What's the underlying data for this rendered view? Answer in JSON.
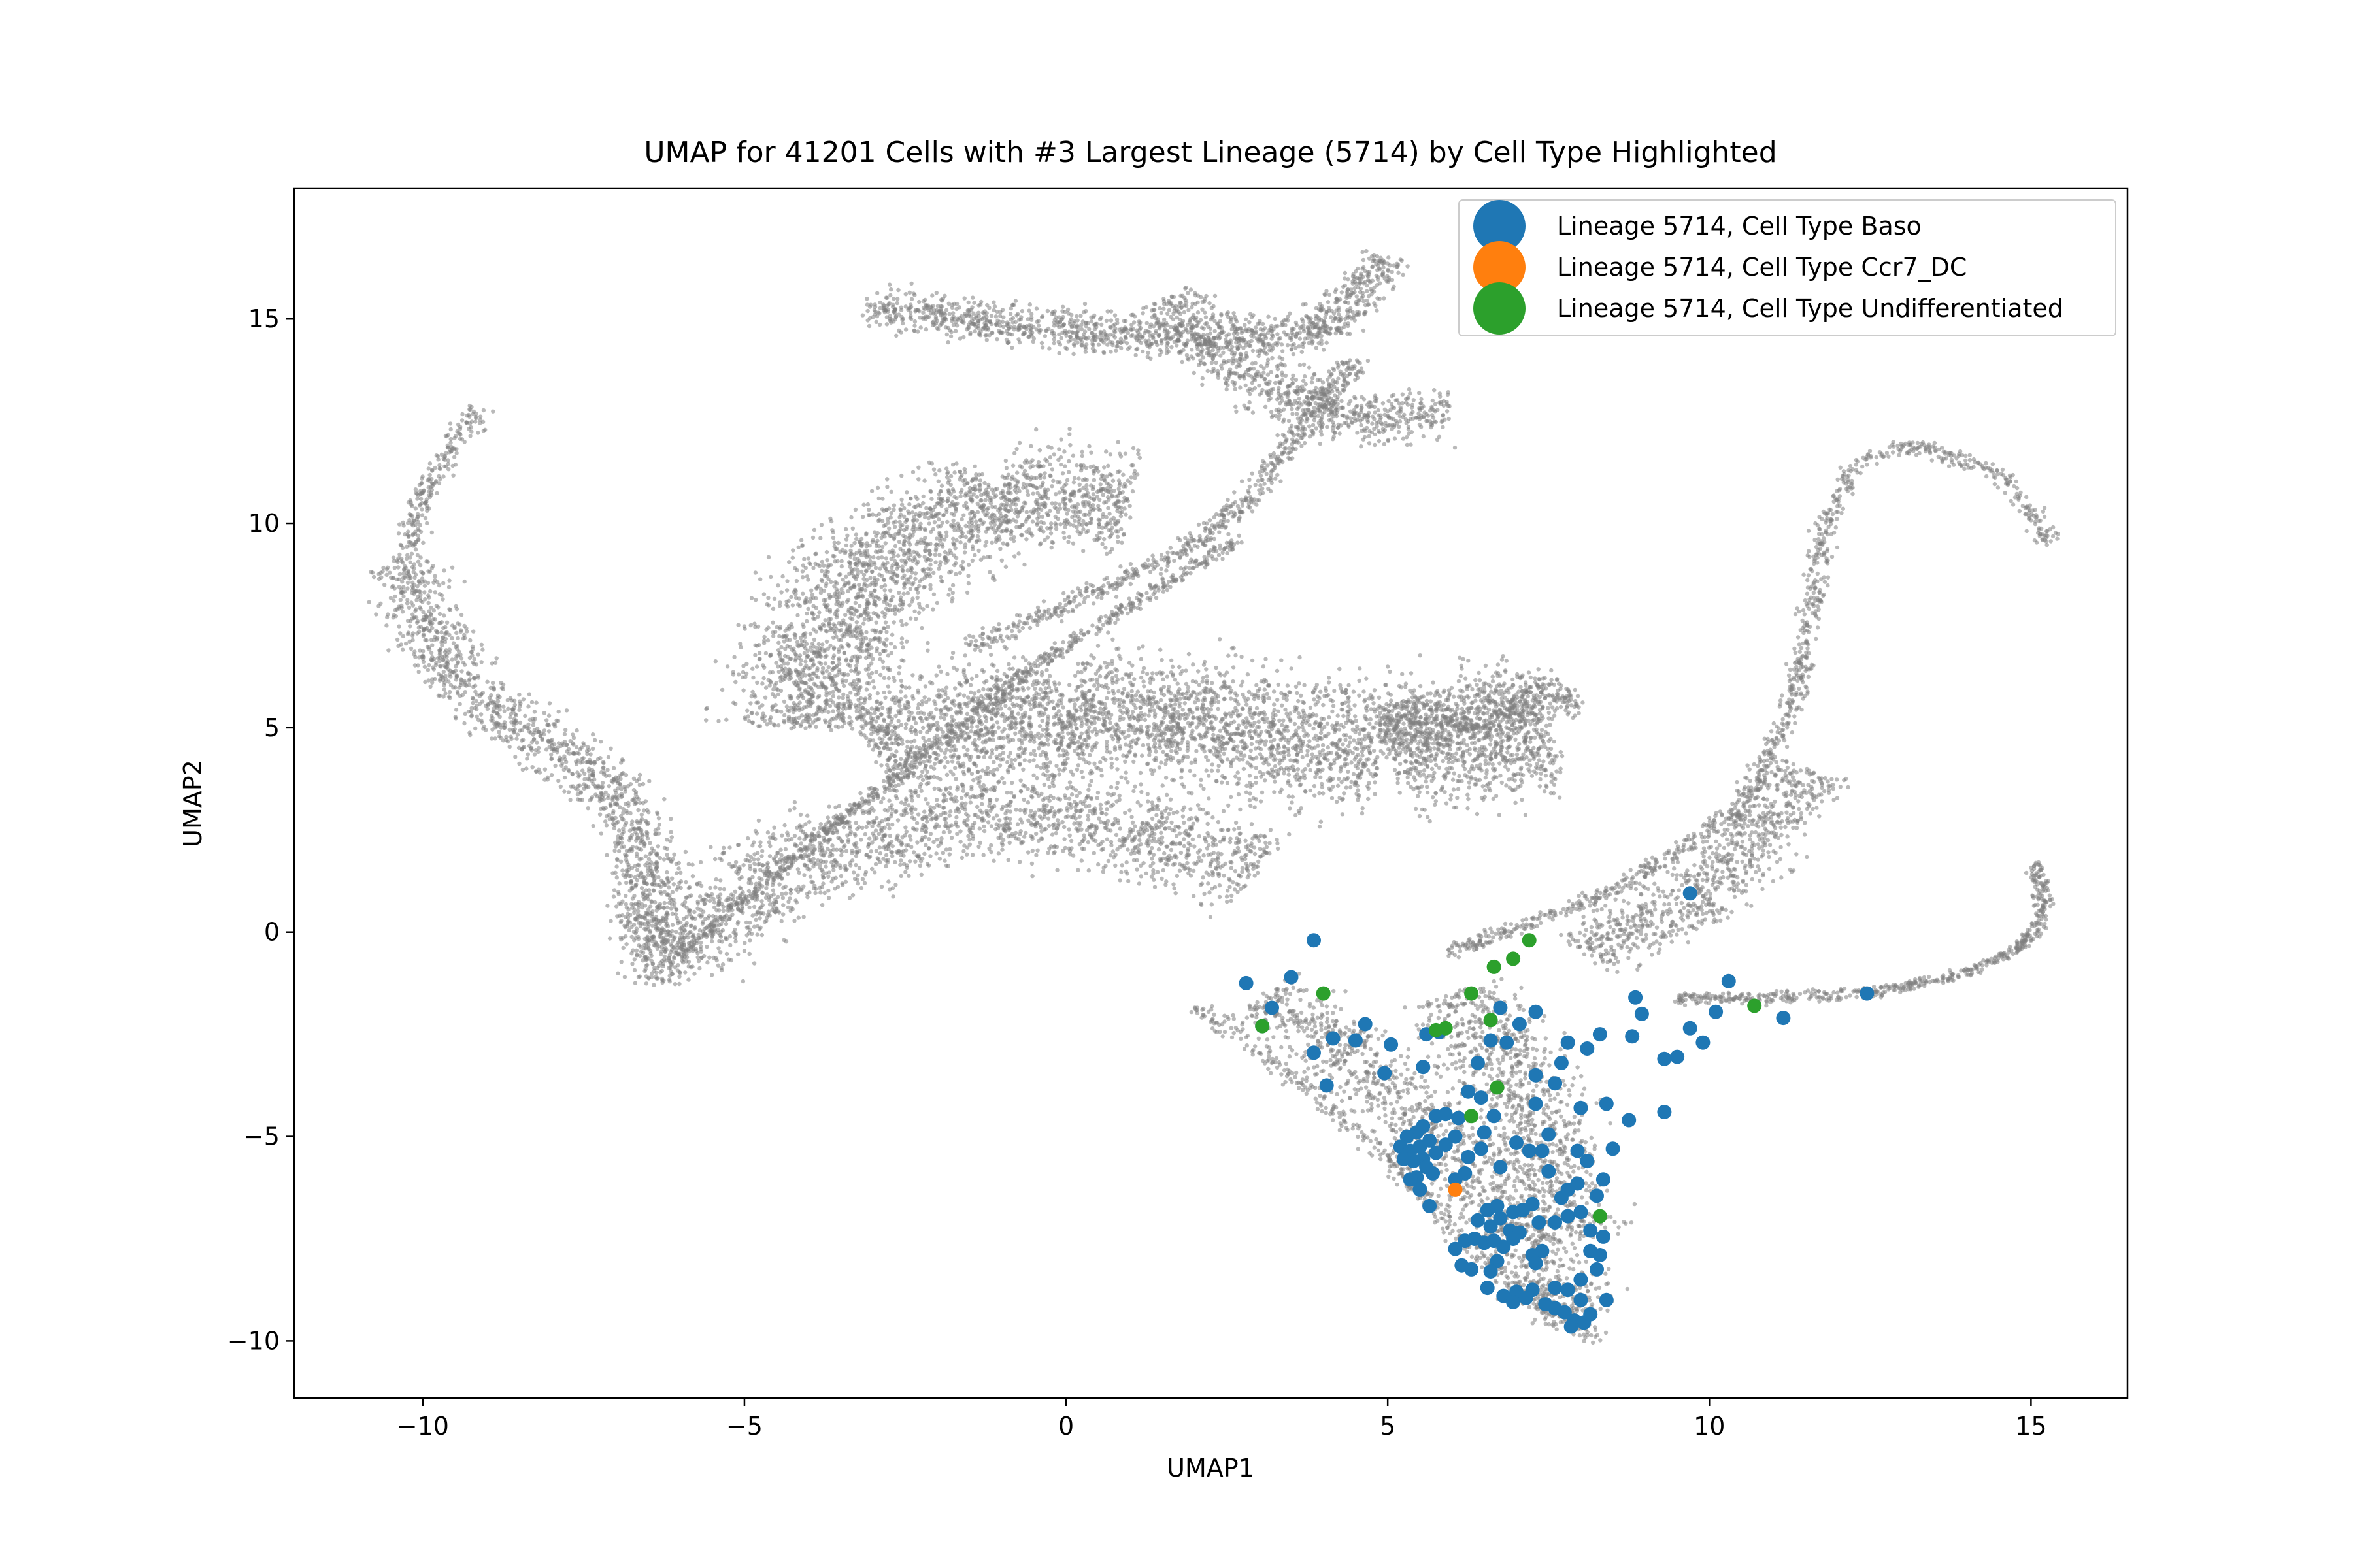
{
  "chart_data": {
    "type": "scatter",
    "title": "UMAP for 41201 Cells with #3 Largest Lineage (5714) by Cell Type Highlighted",
    "xlabel": "UMAP1",
    "ylabel": "UMAP2",
    "xlim": [
      -12.0,
      16.5
    ],
    "ylim": [
      -11.4,
      18.2
    ],
    "xticks": [
      -10,
      -5,
      0,
      5,
      10,
      15
    ],
    "xtick_labels": [
      "−10",
      "−5",
      "0",
      "5",
      "10",
      "15"
    ],
    "yticks": [
      -10,
      -5,
      0,
      5,
      10,
      15
    ],
    "ytick_labels": [
      "−10",
      "−5",
      "0",
      "5",
      "10",
      "15"
    ],
    "legend_position": "top-right",
    "background": {
      "name": "All cells",
      "color": "#808080",
      "regions": [
        {
          "name": "left-arc",
          "path": [
            [
              -10.3,
              9.0
            ],
            [
              -10.0,
              10.6
            ],
            [
              -9.5,
              12.0
            ],
            [
              -9.1,
              12.8
            ]
          ],
          "width": 0.6,
          "density": 500
        },
        {
          "name": "left-arm",
          "path": [
            [
              -10.3,
              9.0
            ],
            [
              -9.9,
              7.3
            ],
            [
              -9.2,
              5.8
            ],
            [
              -8.3,
              4.8
            ],
            [
              -7.2,
              3.8
            ],
            [
              -6.5,
              2.0
            ],
            [
              -6.5,
              0.0
            ],
            [
              -6.3,
              -1.3
            ]
          ],
          "width": 1.7,
          "density": 3200
        },
        {
          "name": "left-basin",
          "path": [
            [
              -6.2,
              -0.5
            ],
            [
              -5.0,
              1.0
            ],
            [
              -3.0,
              2.5
            ],
            [
              -1.0,
              3.0
            ],
            [
              1.0,
              2.5
            ],
            [
              3.0,
              1.5
            ]
          ],
          "width": 3.2,
          "density": 4200
        },
        {
          "name": "upper-lobe",
          "path": [
            [
              -4.0,
              5.0
            ],
            [
              -3.8,
              7.5
            ],
            [
              -2.5,
              9.5
            ],
            [
              -1.0,
              10.8
            ],
            [
              1.0,
              10.5
            ]
          ],
          "width": 3.6,
          "density": 5200
        },
        {
          "name": "central-mass",
          "path": [
            [
              -3.0,
              4.5
            ],
            [
              0.0,
              5.5
            ],
            [
              2.5,
              5.0
            ],
            [
              5.0,
              4.5
            ],
            [
              7.5,
              5.0
            ]
          ],
          "width": 4.5,
          "density": 8200
        },
        {
          "name": "right-lobe",
          "path": [
            [
              5.0,
              5.0
            ],
            [
              7.0,
              5.5
            ],
            [
              7.8,
              6.0
            ]
          ],
          "width": 2.0,
          "density": 1200
        },
        {
          "name": "top-fan",
          "path": [
            [
              -3.1,
              15.3
            ],
            [
              -0.5,
              14.8
            ],
            [
              2.0,
              14.5
            ],
            [
              4.0,
              14.7
            ],
            [
              5.0,
              16.5
            ]
          ],
          "width": 1.4,
          "density": 2800
        },
        {
          "name": "top-fan-inner",
          "path": [
            [
              1.5,
              15.5
            ],
            [
              3.0,
              13.5
            ],
            [
              4.5,
              12.5
            ],
            [
              6.0,
              12.7
            ]
          ],
          "width": 2.0,
          "density": 1800
        },
        {
          "name": "top-stalk",
          "path": [
            [
              4.5,
              14.0
            ],
            [
              3.5,
              12.0
            ],
            [
              2.8,
              10.5
            ],
            [
              2.0,
              9.5
            ],
            [
              0.0,
              8.0
            ],
            [
              -1.5,
              7.0
            ]
          ],
          "width": 0.7,
          "density": 1400
        },
        {
          "name": "diagonal-ridge",
          "path": [
            [
              -6.2,
              -0.8
            ],
            [
              -4.5,
              1.5
            ],
            [
              -2.5,
              4.0
            ],
            [
              -0.5,
              6.5
            ],
            [
              1.5,
              8.5
            ],
            [
              2.7,
              9.6
            ]
          ],
          "width": 0.45,
          "density": 1600
        },
        {
          "name": "right-stem",
          "path": [
            [
              6.0,
              -0.5
            ],
            [
              8.5,
              1.0
            ],
            [
              10.5,
              3.0
            ],
            [
              11.3,
              5.5
            ],
            [
              11.6,
              8.0
            ],
            [
              11.8,
              10.0
            ],
            [
              12.3,
              11.5
            ],
            [
              13.2,
              11.9
            ],
            [
              14.4,
              11.3
            ],
            [
              15.0,
              10.3
            ],
            [
              15.3,
              9.5
            ]
          ],
          "width": 0.5,
          "density": 2200
        },
        {
          "name": "right-fan",
          "path": [
            [
              8.0,
              -0.5
            ],
            [
              10.0,
              1.0
            ],
            [
              11.5,
              4.0
            ]
          ],
          "width": 2.2,
          "density": 1800
        },
        {
          "name": "right-branch",
          "path": [
            [
              9.5,
              -1.6
            ],
            [
              11.0,
              -1.6
            ],
            [
              12.5,
              -1.5
            ],
            [
              14.0,
              -1.0
            ],
            [
              14.9,
              -0.3
            ],
            [
              15.2,
              0.5
            ],
            [
              15.1,
              1.7
            ]
          ],
          "width": 0.35,
          "density": 1200
        },
        {
          "name": "lower-wedge",
          "path": [
            [
              3.0,
              -1.5
            ],
            [
              4.5,
              -3.0
            ],
            [
              5.8,
              -5.0
            ],
            [
              7.0,
              -7.2
            ],
            [
              8.0,
              -9.5
            ]
          ],
          "width": 2.2,
          "density": 2600
        },
        {
          "name": "lower-triangle",
          "path": [
            [
              6.0,
              -1.5
            ],
            [
              7.0,
              -3.5
            ],
            [
              7.5,
              -5.5
            ],
            [
              7.8,
              -7.5
            ]
          ],
          "width": 2.6,
          "density": 2000
        },
        {
          "name": "lower-edge",
          "path": [
            [
              2.0,
              -1.8
            ],
            [
              3.5,
              -3.5
            ],
            [
              5.0,
              -5.5
            ],
            [
              6.5,
              -8.0
            ],
            [
              8.3,
              -10.0
            ]
          ],
          "width": 0.5,
          "density": 900
        }
      ]
    },
    "series": [
      {
        "name": "Lineage 5714, Cell Type Baso",
        "color": "#1f77b4",
        "points": [
          [
            9.7,
            0.95
          ],
          [
            3.85,
            -0.2
          ],
          [
            3.5,
            -1.1
          ],
          [
            2.8,
            -1.25
          ],
          [
            3.2,
            -1.85
          ],
          [
            3.05,
            -2.3
          ],
          [
            12.45,
            -1.5
          ],
          [
            11.15,
            -2.1
          ],
          [
            10.3,
            -1.2
          ],
          [
            10.1,
            -1.95
          ],
          [
            8.85,
            -1.6
          ],
          [
            8.95,
            -2.0
          ],
          [
            8.8,
            -2.55
          ],
          [
            8.3,
            -2.5
          ],
          [
            8.1,
            -2.85
          ],
          [
            7.8,
            -2.7
          ],
          [
            7.7,
            -3.2
          ],
          [
            7.3,
            -1.95
          ],
          [
            7.05,
            -2.25
          ],
          [
            6.75,
            -1.85
          ],
          [
            6.85,
            -2.7
          ],
          [
            6.6,
            -2.65
          ],
          [
            5.8,
            -2.45
          ],
          [
            5.6,
            -2.5
          ],
          [
            4.65,
            -2.25
          ],
          [
            4.5,
            -2.65
          ],
          [
            5.05,
            -2.75
          ],
          [
            4.15,
            -2.6
          ],
          [
            3.85,
            -2.95
          ],
          [
            4.05,
            -3.75
          ],
          [
            4.95,
            -3.45
          ],
          [
            5.55,
            -3.3
          ],
          [
            6.4,
            -3.2
          ],
          [
            7.3,
            -3.5
          ],
          [
            7.6,
            -3.7
          ],
          [
            9.9,
            -2.7
          ],
          [
            9.7,
            -2.35
          ],
          [
            9.5,
            -3.05
          ],
          [
            9.3,
            -3.1
          ],
          [
            9.3,
            -4.4
          ],
          [
            8.75,
            -4.6
          ],
          [
            8.5,
            -5.3
          ],
          [
            8.4,
            -4.2
          ],
          [
            8.0,
            -4.3
          ],
          [
            7.5,
            -4.95
          ],
          [
            7.3,
            -4.2
          ],
          [
            6.65,
            -4.5
          ],
          [
            6.5,
            -4.9
          ],
          [
            6.45,
            -4.05
          ],
          [
            6.25,
            -3.9
          ],
          [
            6.1,
            -4.55
          ],
          [
            5.9,
            -4.45
          ],
          [
            5.75,
            -4.5
          ],
          [
            5.55,
            -4.75
          ],
          [
            5.45,
            -4.9
          ],
          [
            5.3,
            -5.0
          ],
          [
            5.2,
            -5.25
          ],
          [
            5.35,
            -5.35
          ],
          [
            5.5,
            -5.25
          ],
          [
            5.65,
            -5.1
          ],
          [
            5.55,
            -5.55
          ],
          [
            5.4,
            -5.6
          ],
          [
            5.25,
            -5.55
          ],
          [
            5.6,
            -5.75
          ],
          [
            5.75,
            -5.4
          ],
          [
            5.9,
            -5.2
          ],
          [
            6.05,
            -5.0
          ],
          [
            5.7,
            -5.9
          ],
          [
            5.45,
            -6.0
          ],
          [
            5.35,
            -6.05
          ],
          [
            5.5,
            -6.3
          ],
          [
            5.65,
            -6.7
          ],
          [
            6.25,
            -5.5
          ],
          [
            6.2,
            -5.9
          ],
          [
            6.05,
            -6.05
          ],
          [
            6.45,
            -5.3
          ],
          [
            6.75,
            -5.75
          ],
          [
            7.0,
            -5.15
          ],
          [
            7.2,
            -5.35
          ],
          [
            7.4,
            -5.35
          ],
          [
            7.5,
            -5.85
          ],
          [
            7.95,
            -5.35
          ],
          [
            8.1,
            -5.6
          ],
          [
            7.95,
            -6.15
          ],
          [
            7.8,
            -6.3
          ],
          [
            7.7,
            -6.5
          ],
          [
            8.35,
            -6.05
          ],
          [
            8.25,
            -6.45
          ],
          [
            7.25,
            -6.65
          ],
          [
            7.1,
            -6.8
          ],
          [
            6.95,
            -6.85
          ],
          [
            6.7,
            -6.7
          ],
          [
            6.55,
            -6.8
          ],
          [
            6.4,
            -7.05
          ],
          [
            6.6,
            -7.2
          ],
          [
            6.75,
            -7.0
          ],
          [
            6.9,
            -7.3
          ],
          [
            7.05,
            -7.35
          ],
          [
            7.35,
            -7.1
          ],
          [
            7.6,
            -7.1
          ],
          [
            7.8,
            -6.95
          ],
          [
            8.0,
            -6.85
          ],
          [
            8.15,
            -7.3
          ],
          [
            8.35,
            -7.45
          ],
          [
            8.15,
            -7.8
          ],
          [
            8.3,
            -7.9
          ],
          [
            6.2,
            -7.55
          ],
          [
            6.35,
            -7.5
          ],
          [
            6.5,
            -7.6
          ],
          [
            6.65,
            -7.55
          ],
          [
            6.8,
            -7.7
          ],
          [
            6.95,
            -7.5
          ],
          [
            7.25,
            -7.9
          ],
          [
            7.4,
            -7.8
          ],
          [
            6.7,
            -8.05
          ],
          [
            6.6,
            -8.3
          ],
          [
            6.3,
            -8.25
          ],
          [
            6.05,
            -7.75
          ],
          [
            7.3,
            -8.1
          ],
          [
            7.6,
            -8.7
          ],
          [
            7.8,
            -8.75
          ],
          [
            8.0,
            -8.5
          ],
          [
            8.25,
            -8.25
          ],
          [
            8.4,
            -9.0
          ],
          [
            8.0,
            -9.0
          ],
          [
            7.6,
            -9.2
          ],
          [
            7.9,
            -9.5
          ],
          [
            8.05,
            -9.55
          ],
          [
            8.15,
            -9.35
          ],
          [
            6.8,
            -8.9
          ],
          [
            7.0,
            -8.8
          ],
          [
            7.25,
            -8.75
          ],
          [
            7.15,
            -8.95
          ],
          [
            7.45,
            -9.1
          ],
          [
            6.95,
            -9.05
          ],
          [
            7.75,
            -9.3
          ],
          [
            7.85,
            -9.65
          ],
          [
            6.55,
            -8.7
          ],
          [
            6.15,
            -8.15
          ]
        ]
      },
      {
        "name": "Lineage 5714, Cell Type Ccr7_DC",
        "color": "#ff7f0e",
        "points": [
          [
            6.05,
            -6.3
          ]
        ]
      },
      {
        "name": "Lineage 5714, Cell Type Undifferentiated",
        "color": "#2ca02c",
        "points": [
          [
            7.2,
            -0.2
          ],
          [
            6.95,
            -0.65
          ],
          [
            6.65,
            -0.85
          ],
          [
            4.0,
            -1.5
          ],
          [
            3.05,
            -2.3
          ],
          [
            6.3,
            -1.5
          ],
          [
            5.9,
            -2.35
          ],
          [
            5.75,
            -2.4
          ],
          [
            6.6,
            -2.15
          ],
          [
            6.7,
            -3.8
          ],
          [
            6.3,
            -4.5
          ],
          [
            8.3,
            -6.95
          ],
          [
            10.7,
            -1.8
          ]
        ]
      }
    ]
  }
}
